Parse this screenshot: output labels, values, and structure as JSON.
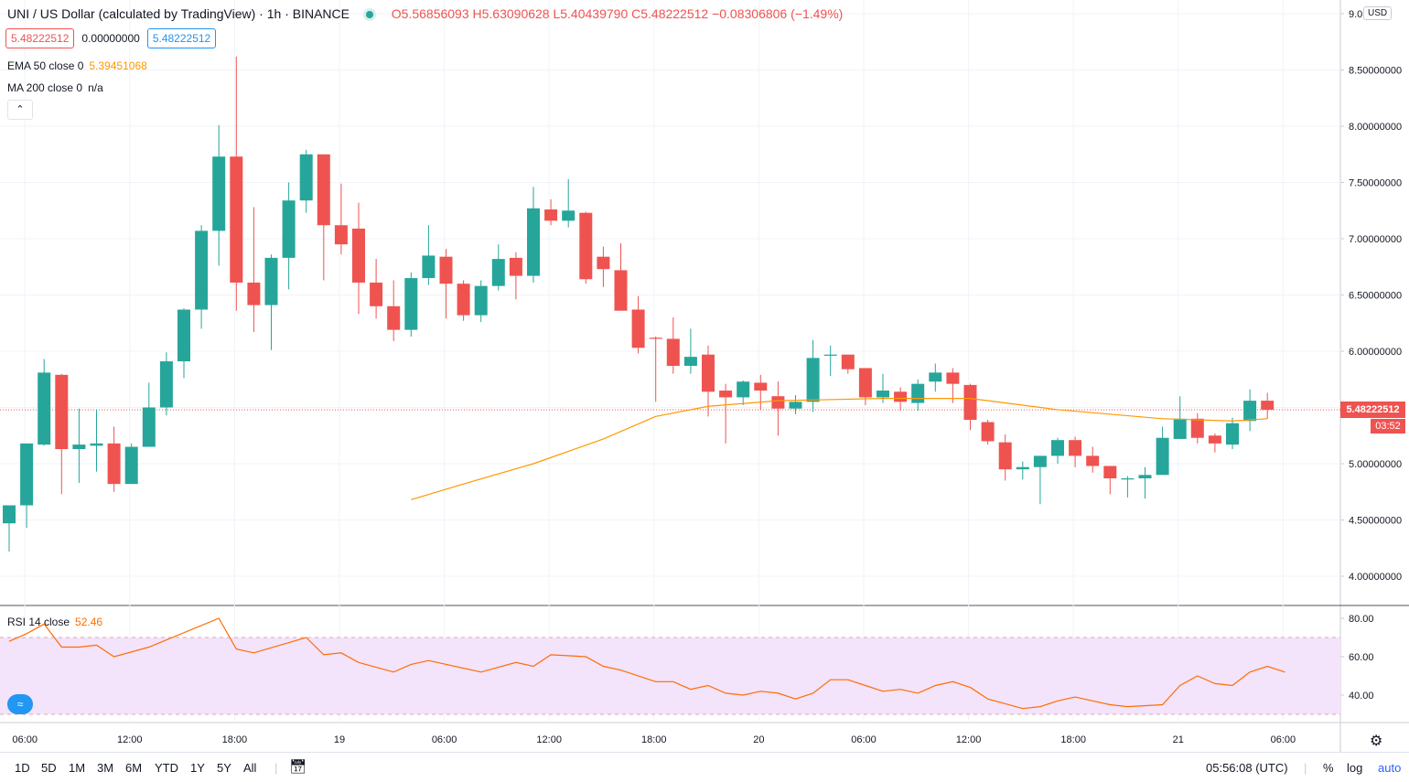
{
  "header": {
    "symbol": "UNI / US Dollar (calculated by TradingView) · 1h · BINANCE",
    "ohlc": "O5.56856093 H5.63090628 L5.40439790 C5.48222512 −0.08306806 (−1.49%)"
  },
  "pills": {
    "bid": "5.48222512",
    "spread": "0.00000000",
    "ask": "5.48222512"
  },
  "indicators": {
    "ema_label": "EMA 50 close 0",
    "ema_value": "5.39451068",
    "ma_label": "MA 200 close 0",
    "ma_value": "n/a",
    "rsi_label": "RSI 14 close",
    "rsi_value": "52.46"
  },
  "collapse_icon": "chevron-up-icon",
  "currency_badge": "USD",
  "price_scale": {
    "labels": [
      "9.0",
      "8.50000000",
      "8.00000000",
      "7.50000000",
      "7.00000000",
      "6.50000000",
      "6.00000000",
      "5.50000000",
      "5.00000000",
      "4.50000000",
      "4.00000000"
    ],
    "current_price": "5.48222512",
    "countdown": "03:52"
  },
  "rsi_scale": {
    "labels": [
      "80.00",
      "60.00",
      "40.00"
    ]
  },
  "time_axis": {
    "labels": [
      "06:00",
      "12:00",
      "18:00",
      "19",
      "06:00",
      "12:00",
      "18:00",
      "20",
      "06:00",
      "12:00",
      "18:00",
      "21",
      "06:00"
    ]
  },
  "bottom_bar": {
    "ranges": [
      "1D",
      "5D",
      "1M",
      "3M",
      "6M",
      "YTD",
      "1Y",
      "5Y",
      "All"
    ],
    "clock": "05:56:08 (UTC)",
    "percent": "%",
    "log": "log",
    "auto": "auto"
  },
  "colors": {
    "up": "#26a69a",
    "down": "#ef5350",
    "ema": "#ff9800",
    "rsi": "#ff6d00",
    "rsi_band": "#f3e3fb"
  },
  "chart_data": {
    "type": "candlestick",
    "symbol": "UNI/USD",
    "interval": "1h",
    "time_labels_shown": [
      "06:00",
      "12:00",
      "18:00",
      "19",
      "06:00",
      "12:00",
      "18:00",
      "20",
      "06:00",
      "12:00",
      "18:00",
      "21",
      "06:00"
    ],
    "y_range": [
      3.9,
      9.05
    ],
    "candles": [
      [
        4.47,
        4.63,
        4.22,
        4.63
      ],
      [
        4.63,
        5.17,
        4.43,
        5.18
      ],
      [
        5.17,
        5.93,
        5.16,
        5.81
      ],
      [
        5.79,
        5.8,
        4.73,
        5.13
      ],
      [
        5.13,
        5.49,
        4.83,
        5.17
      ],
      [
        5.16,
        5.48,
        4.93,
        5.18
      ],
      [
        5.18,
        5.33,
        4.75,
        4.82
      ],
      [
        4.82,
        5.18,
        4.82,
        5.15
      ],
      [
        5.15,
        5.72,
        5.15,
        5.5
      ],
      [
        5.5,
        5.99,
        5.43,
        5.91
      ],
      [
        5.91,
        6.38,
        5.76,
        6.37
      ],
      [
        6.37,
        7.12,
        6.2,
        7.07
      ],
      [
        7.07,
        8.01,
        6.76,
        7.73
      ],
      [
        7.73,
        8.62,
        6.36,
        6.61
      ],
      [
        6.61,
        7.28,
        6.17,
        6.41
      ],
      [
        6.41,
        6.86,
        6.01,
        6.83
      ],
      [
        6.83,
        7.5,
        6.55,
        7.34
      ],
      [
        7.34,
        7.79,
        7.23,
        7.75
      ],
      [
        7.75,
        7.74,
        6.63,
        7.12
      ],
      [
        7.12,
        7.49,
        6.86,
        6.95
      ],
      [
        7.09,
        7.32,
        6.33,
        6.61
      ],
      [
        6.61,
        6.82,
        6.29,
        6.4
      ],
      [
        6.4,
        6.63,
        6.09,
        6.19
      ],
      [
        6.19,
        6.7,
        6.13,
        6.65
      ],
      [
        6.65,
        7.12,
        6.59,
        6.85
      ],
      [
        6.84,
        6.91,
        6.29,
        6.6
      ],
      [
        6.6,
        6.63,
        6.27,
        6.32
      ],
      [
        6.32,
        6.63,
        6.26,
        6.58
      ],
      [
        6.58,
        6.95,
        6.54,
        6.82
      ],
      [
        6.83,
        6.88,
        6.46,
        6.67
      ],
      [
        6.67,
        7.46,
        6.61,
        7.27
      ],
      [
        7.26,
        7.35,
        7.12,
        7.16
      ],
      [
        7.16,
        7.53,
        7.1,
        7.25
      ],
      [
        7.23,
        7.24,
        6.6,
        6.64
      ],
      [
        6.84,
        6.93,
        6.57,
        6.73
      ],
      [
        6.72,
        6.96,
        6.41,
        6.36
      ],
      [
        6.37,
        6.49,
        5.98,
        6.03
      ],
      [
        6.12,
        6.13,
        5.55,
        6.11
      ],
      [
        6.11,
        6.3,
        5.8,
        5.87
      ],
      [
        5.87,
        6.2,
        5.8,
        5.95
      ],
      [
        5.97,
        6.05,
        5.42,
        5.64
      ],
      [
        5.65,
        5.71,
        5.18,
        5.59
      ],
      [
        5.59,
        5.74,
        5.52,
        5.73
      ],
      [
        5.72,
        5.79,
        5.48,
        5.65
      ],
      [
        5.6,
        5.73,
        5.25,
        5.49
      ],
      [
        5.49,
        5.61,
        5.44,
        5.55
      ],
      [
        5.55,
        6.1,
        5.46,
        5.94
      ],
      [
        5.96,
        6.05,
        5.78,
        5.97
      ],
      [
        5.97,
        5.96,
        5.8,
        5.84
      ],
      [
        5.85,
        5.83,
        5.52,
        5.59
      ],
      [
        5.59,
        5.8,
        5.54,
        5.65
      ],
      [
        5.64,
        5.68,
        5.47,
        5.55
      ],
      [
        5.54,
        5.75,
        5.47,
        5.71
      ],
      [
        5.73,
        5.89,
        5.64,
        5.81
      ],
      [
        5.81,
        5.85,
        5.54,
        5.71
      ],
      [
        5.7,
        5.71,
        5.3,
        5.39
      ],
      [
        5.37,
        5.39,
        5.17,
        5.2
      ],
      [
        5.19,
        5.26,
        4.85,
        4.95
      ],
      [
        4.95,
        5.02,
        4.86,
        4.97
      ],
      [
        4.97,
        5.05,
        4.64,
        5.07
      ],
      [
        5.07,
        5.23,
        5.0,
        5.21
      ],
      [
        5.21,
        5.24,
        4.97,
        5.07
      ],
      [
        5.07,
        5.15,
        4.92,
        4.98
      ],
      [
        4.98,
        4.97,
        4.73,
        4.87
      ],
      [
        4.86,
        4.89,
        4.7,
        4.87
      ],
      [
        4.87,
        4.97,
        4.69,
        4.9
      ],
      [
        4.9,
        5.33,
        4.91,
        5.23
      ],
      [
        5.22,
        5.6,
        5.22,
        5.4
      ],
      [
        5.4,
        5.45,
        5.18,
        5.23
      ],
      [
        5.25,
        5.27,
        5.1,
        5.18
      ],
      [
        5.17,
        5.41,
        5.13,
        5.36
      ],
      [
        5.38,
        5.66,
        5.29,
        5.56
      ],
      [
        5.56,
        5.63,
        5.4,
        5.48
      ]
    ],
    "ema50": [
      {
        "i": 23,
        "v": 4.68
      },
      {
        "i": 26,
        "v": 4.82
      },
      {
        "i": 30,
        "v": 5.0
      },
      {
        "i": 34,
        "v": 5.22
      },
      {
        "i": 37,
        "v": 5.42
      },
      {
        "i": 40,
        "v": 5.51
      },
      {
        "i": 44,
        "v": 5.56
      },
      {
        "i": 50,
        "v": 5.58
      },
      {
        "i": 55,
        "v": 5.58
      },
      {
        "i": 60,
        "v": 5.48
      },
      {
        "i": 66,
        "v": 5.4
      },
      {
        "i": 70,
        "v": 5.38
      },
      {
        "i": 72,
        "v": 5.4
      }
    ],
    "rsi": [
      {
        "i": 0,
        "v": 68
      },
      {
        "i": 1,
        "v": 72
      },
      {
        "i": 2,
        "v": 77
      },
      {
        "i": 3,
        "v": 65
      },
      {
        "i": 4,
        "v": 65
      },
      {
        "i": 5,
        "v": 66
      },
      {
        "i": 6,
        "v": 60
      },
      {
        "i": 8,
        "v": 65
      },
      {
        "i": 12,
        "v": 80
      },
      {
        "i": 13,
        "v": 64
      },
      {
        "i": 14,
        "v": 62
      },
      {
        "i": 17,
        "v": 70
      },
      {
        "i": 18,
        "v": 61
      },
      {
        "i": 19,
        "v": 62
      },
      {
        "i": 20,
        "v": 57
      },
      {
        "i": 22,
        "v": 52
      },
      {
        "i": 23,
        "v": 56
      },
      {
        "i": 24,
        "v": 58
      },
      {
        "i": 27,
        "v": 52
      },
      {
        "i": 29,
        "v": 57
      },
      {
        "i": 30,
        "v": 55
      },
      {
        "i": 31,
        "v": 61
      },
      {
        "i": 33,
        "v": 60
      },
      {
        "i": 34,
        "v": 55
      },
      {
        "i": 35,
        "v": 53
      },
      {
        "i": 37,
        "v": 47
      },
      {
        "i": 38,
        "v": 47
      },
      {
        "i": 39,
        "v": 43
      },
      {
        "i": 40,
        "v": 45
      },
      {
        "i": 41,
        "v": 41
      },
      {
        "i": 42,
        "v": 40
      },
      {
        "i": 43,
        "v": 42
      },
      {
        "i": 44,
        "v": 41
      },
      {
        "i": 45,
        "v": 38
      },
      {
        "i": 46,
        "v": 41
      },
      {
        "i": 47,
        "v": 48
      },
      {
        "i": 48,
        "v": 48
      },
      {
        "i": 49,
        "v": 45
      },
      {
        "i": 50,
        "v": 42
      },
      {
        "i": 51,
        "v": 43
      },
      {
        "i": 52,
        "v": 41
      },
      {
        "i": 53,
        "v": 45
      },
      {
        "i": 54,
        "v": 47
      },
      {
        "i": 55,
        "v": 44
      },
      {
        "i": 56,
        "v": 38
      },
      {
        "i": 58,
        "v": 33
      },
      {
        "i": 59,
        "v": 34
      },
      {
        "i": 60,
        "v": 37
      },
      {
        "i": 61,
        "v": 39
      },
      {
        "i": 62,
        "v": 37
      },
      {
        "i": 63,
        "v": 35
      },
      {
        "i": 64,
        "v": 34
      },
      {
        "i": 66,
        "v": 35
      },
      {
        "i": 67,
        "v": 45
      },
      {
        "i": 68,
        "v": 50
      },
      {
        "i": 69,
        "v": 46
      },
      {
        "i": 70,
        "v": 45
      },
      {
        "i": 71,
        "v": 52
      },
      {
        "i": 72,
        "v": 55
      },
      {
        "i": 73,
        "v": 52
      }
    ],
    "rsi_range": [
      27,
      86
    ],
    "rsi_band": [
      30,
      70
    ]
  }
}
